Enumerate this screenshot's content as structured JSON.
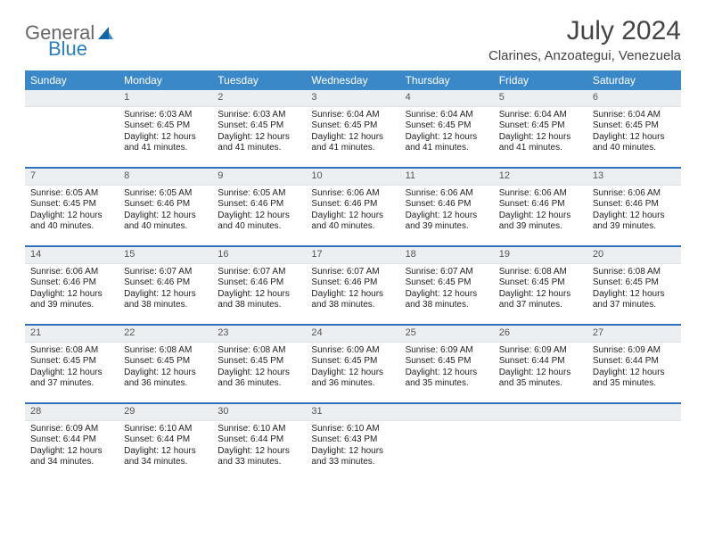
{
  "logo": {
    "text1": "General",
    "text2": "Blue"
  },
  "title": "July 2024",
  "location": "Clarines, Anzoategui, Venezuela",
  "colors": {
    "header_bar": "#3b88c9",
    "week_separator": "#2f72b5",
    "day_num_bg": "#eceff1",
    "text": "#222222",
    "title_text": "#444444",
    "logo_gray": "#666666",
    "logo_blue": "#2a7fba"
  },
  "days_of_week": [
    "Sunday",
    "Monday",
    "Tuesday",
    "Wednesday",
    "Thursday",
    "Friday",
    "Saturday"
  ],
  "weeks": [
    [
      {
        "n": "",
        "sr": "",
        "ss": "",
        "dl": ""
      },
      {
        "n": "1",
        "sr": "Sunrise: 6:03 AM",
        "ss": "Sunset: 6:45 PM",
        "dl": "Daylight: 12 hours and 41 minutes."
      },
      {
        "n": "2",
        "sr": "Sunrise: 6:03 AM",
        "ss": "Sunset: 6:45 PM",
        "dl": "Daylight: 12 hours and 41 minutes."
      },
      {
        "n": "3",
        "sr": "Sunrise: 6:04 AM",
        "ss": "Sunset: 6:45 PM",
        "dl": "Daylight: 12 hours and 41 minutes."
      },
      {
        "n": "4",
        "sr": "Sunrise: 6:04 AM",
        "ss": "Sunset: 6:45 PM",
        "dl": "Daylight: 12 hours and 41 minutes."
      },
      {
        "n": "5",
        "sr": "Sunrise: 6:04 AM",
        "ss": "Sunset: 6:45 PM",
        "dl": "Daylight: 12 hours and 41 minutes."
      },
      {
        "n": "6",
        "sr": "Sunrise: 6:04 AM",
        "ss": "Sunset: 6:45 PM",
        "dl": "Daylight: 12 hours and 40 minutes."
      }
    ],
    [
      {
        "n": "7",
        "sr": "Sunrise: 6:05 AM",
        "ss": "Sunset: 6:45 PM",
        "dl": "Daylight: 12 hours and 40 minutes."
      },
      {
        "n": "8",
        "sr": "Sunrise: 6:05 AM",
        "ss": "Sunset: 6:46 PM",
        "dl": "Daylight: 12 hours and 40 minutes."
      },
      {
        "n": "9",
        "sr": "Sunrise: 6:05 AM",
        "ss": "Sunset: 6:46 PM",
        "dl": "Daylight: 12 hours and 40 minutes."
      },
      {
        "n": "10",
        "sr": "Sunrise: 6:06 AM",
        "ss": "Sunset: 6:46 PM",
        "dl": "Daylight: 12 hours and 40 minutes."
      },
      {
        "n": "11",
        "sr": "Sunrise: 6:06 AM",
        "ss": "Sunset: 6:46 PM",
        "dl": "Daylight: 12 hours and 39 minutes."
      },
      {
        "n": "12",
        "sr": "Sunrise: 6:06 AM",
        "ss": "Sunset: 6:46 PM",
        "dl": "Daylight: 12 hours and 39 minutes."
      },
      {
        "n": "13",
        "sr": "Sunrise: 6:06 AM",
        "ss": "Sunset: 6:46 PM",
        "dl": "Daylight: 12 hours and 39 minutes."
      }
    ],
    [
      {
        "n": "14",
        "sr": "Sunrise: 6:06 AM",
        "ss": "Sunset: 6:46 PM",
        "dl": "Daylight: 12 hours and 39 minutes."
      },
      {
        "n": "15",
        "sr": "Sunrise: 6:07 AM",
        "ss": "Sunset: 6:46 PM",
        "dl": "Daylight: 12 hours and 38 minutes."
      },
      {
        "n": "16",
        "sr": "Sunrise: 6:07 AM",
        "ss": "Sunset: 6:46 PM",
        "dl": "Daylight: 12 hours and 38 minutes."
      },
      {
        "n": "17",
        "sr": "Sunrise: 6:07 AM",
        "ss": "Sunset: 6:46 PM",
        "dl": "Daylight: 12 hours and 38 minutes."
      },
      {
        "n": "18",
        "sr": "Sunrise: 6:07 AM",
        "ss": "Sunset: 6:45 PM",
        "dl": "Daylight: 12 hours and 38 minutes."
      },
      {
        "n": "19",
        "sr": "Sunrise: 6:08 AM",
        "ss": "Sunset: 6:45 PM",
        "dl": "Daylight: 12 hours and 37 minutes."
      },
      {
        "n": "20",
        "sr": "Sunrise: 6:08 AM",
        "ss": "Sunset: 6:45 PM",
        "dl": "Daylight: 12 hours and 37 minutes."
      }
    ],
    [
      {
        "n": "21",
        "sr": "Sunrise: 6:08 AM",
        "ss": "Sunset: 6:45 PM",
        "dl": "Daylight: 12 hours and 37 minutes."
      },
      {
        "n": "22",
        "sr": "Sunrise: 6:08 AM",
        "ss": "Sunset: 6:45 PM",
        "dl": "Daylight: 12 hours and 36 minutes."
      },
      {
        "n": "23",
        "sr": "Sunrise: 6:08 AM",
        "ss": "Sunset: 6:45 PM",
        "dl": "Daylight: 12 hours and 36 minutes."
      },
      {
        "n": "24",
        "sr": "Sunrise: 6:09 AM",
        "ss": "Sunset: 6:45 PM",
        "dl": "Daylight: 12 hours and 36 minutes."
      },
      {
        "n": "25",
        "sr": "Sunrise: 6:09 AM",
        "ss": "Sunset: 6:45 PM",
        "dl": "Daylight: 12 hours and 35 minutes."
      },
      {
        "n": "26",
        "sr": "Sunrise: 6:09 AM",
        "ss": "Sunset: 6:44 PM",
        "dl": "Daylight: 12 hours and 35 minutes."
      },
      {
        "n": "27",
        "sr": "Sunrise: 6:09 AM",
        "ss": "Sunset: 6:44 PM",
        "dl": "Daylight: 12 hours and 35 minutes."
      }
    ],
    [
      {
        "n": "28",
        "sr": "Sunrise: 6:09 AM",
        "ss": "Sunset: 6:44 PM",
        "dl": "Daylight: 12 hours and 34 minutes."
      },
      {
        "n": "29",
        "sr": "Sunrise: 6:10 AM",
        "ss": "Sunset: 6:44 PM",
        "dl": "Daylight: 12 hours and 34 minutes."
      },
      {
        "n": "30",
        "sr": "Sunrise: 6:10 AM",
        "ss": "Sunset: 6:44 PM",
        "dl": "Daylight: 12 hours and 33 minutes."
      },
      {
        "n": "31",
        "sr": "Sunrise: 6:10 AM",
        "ss": "Sunset: 6:43 PM",
        "dl": "Daylight: 12 hours and 33 minutes."
      },
      {
        "n": "",
        "sr": "",
        "ss": "",
        "dl": ""
      },
      {
        "n": "",
        "sr": "",
        "ss": "",
        "dl": ""
      },
      {
        "n": "",
        "sr": "",
        "ss": "",
        "dl": ""
      }
    ]
  ]
}
